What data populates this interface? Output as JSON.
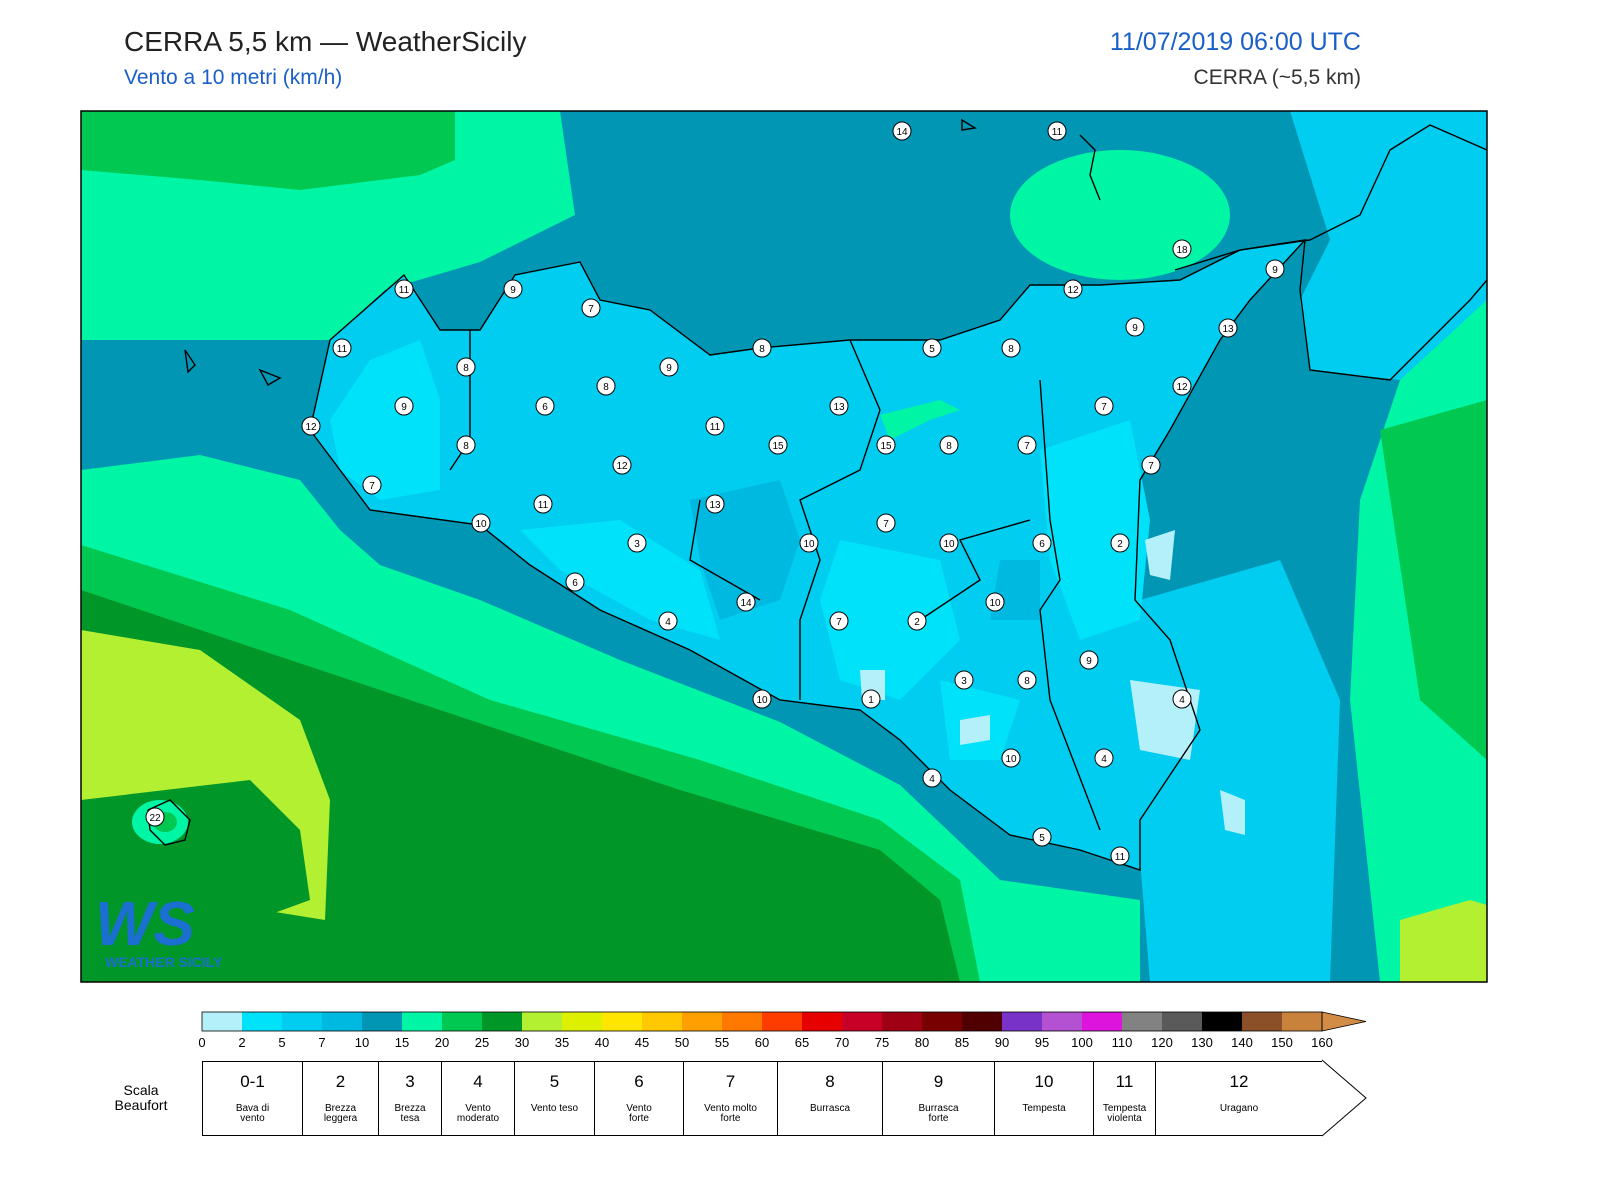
{
  "header": {
    "title": "CERRA 5,5 km — WeatherSicily",
    "subtitle": "Vento a 10 metri (km/h)",
    "datetime": "11/07/2019 06:00 UTC",
    "model": "CERRA (~5,5 km)"
  },
  "map": {
    "station_values": [
      14,
      11,
      18,
      9,
      11,
      9,
      7,
      12,
      13,
      9,
      11,
      8,
      9,
      8,
      5,
      8,
      8,
      12,
      9,
      6,
      13,
      7,
      12,
      11,
      8,
      15,
      15,
      8,
      7,
      12,
      7,
      7,
      11,
      13,
      10,
      7,
      3,
      10,
      10,
      6,
      2,
      6,
      14,
      10,
      4,
      7,
      2,
      9,
      3,
      8,
      10,
      1,
      4,
      10,
      4,
      4,
      22,
      5,
      11
    ],
    "logo": {
      "mark": "WS",
      "name": "WEATHER SICILY"
    }
  },
  "colorbar": {
    "ticks": [
      0,
      2,
      5,
      7,
      10,
      15,
      20,
      25,
      30,
      35,
      40,
      45,
      50,
      55,
      60,
      65,
      70,
      75,
      80,
      85,
      90,
      95,
      100,
      110,
      120,
      130,
      140,
      150,
      160
    ],
    "colors": [
      "#b4f0fa",
      "#00e1fa",
      "#00cdf0",
      "#00b9e1",
      "#0096b4",
      "#00f5a5",
      "#00c850",
      "#009628",
      "#b4f032",
      "#dcf000",
      "#ffe600",
      "#ffc800",
      "#ffa000",
      "#ff7800",
      "#ff3c00",
      "#e60000",
      "#c80028",
      "#a00014",
      "#780000",
      "#500000",
      "#7832c8",
      "#b450d2",
      "#dc14dc",
      "#828282",
      "#5a5a5a",
      "#000000",
      "#8c5028",
      "#c8823c"
    ],
    "over_color": "#d28c46"
  },
  "beaufort": {
    "label": "Scala\nBeaufort",
    "levels": [
      {
        "force": "0-1",
        "name": "Bava di\nvento"
      },
      {
        "force": "2",
        "name": "Brezza\nleggera"
      },
      {
        "force": "3",
        "name": "Brezza\ntesa"
      },
      {
        "force": "4",
        "name": "Vento\nmoderato"
      },
      {
        "force": "5",
        "name": "Vento teso"
      },
      {
        "force": "6",
        "name": "Vento\nforte"
      },
      {
        "force": "7",
        "name": "Vento molto\nforte"
      },
      {
        "force": "8",
        "name": "Burrasca"
      },
      {
        "force": "9",
        "name": "Burrasca\nforte"
      },
      {
        "force": "10",
        "name": "Tempesta"
      },
      {
        "force": "11",
        "name": "Tempesta\nviolenta"
      },
      {
        "force": "12",
        "name": "Uragano"
      }
    ]
  }
}
